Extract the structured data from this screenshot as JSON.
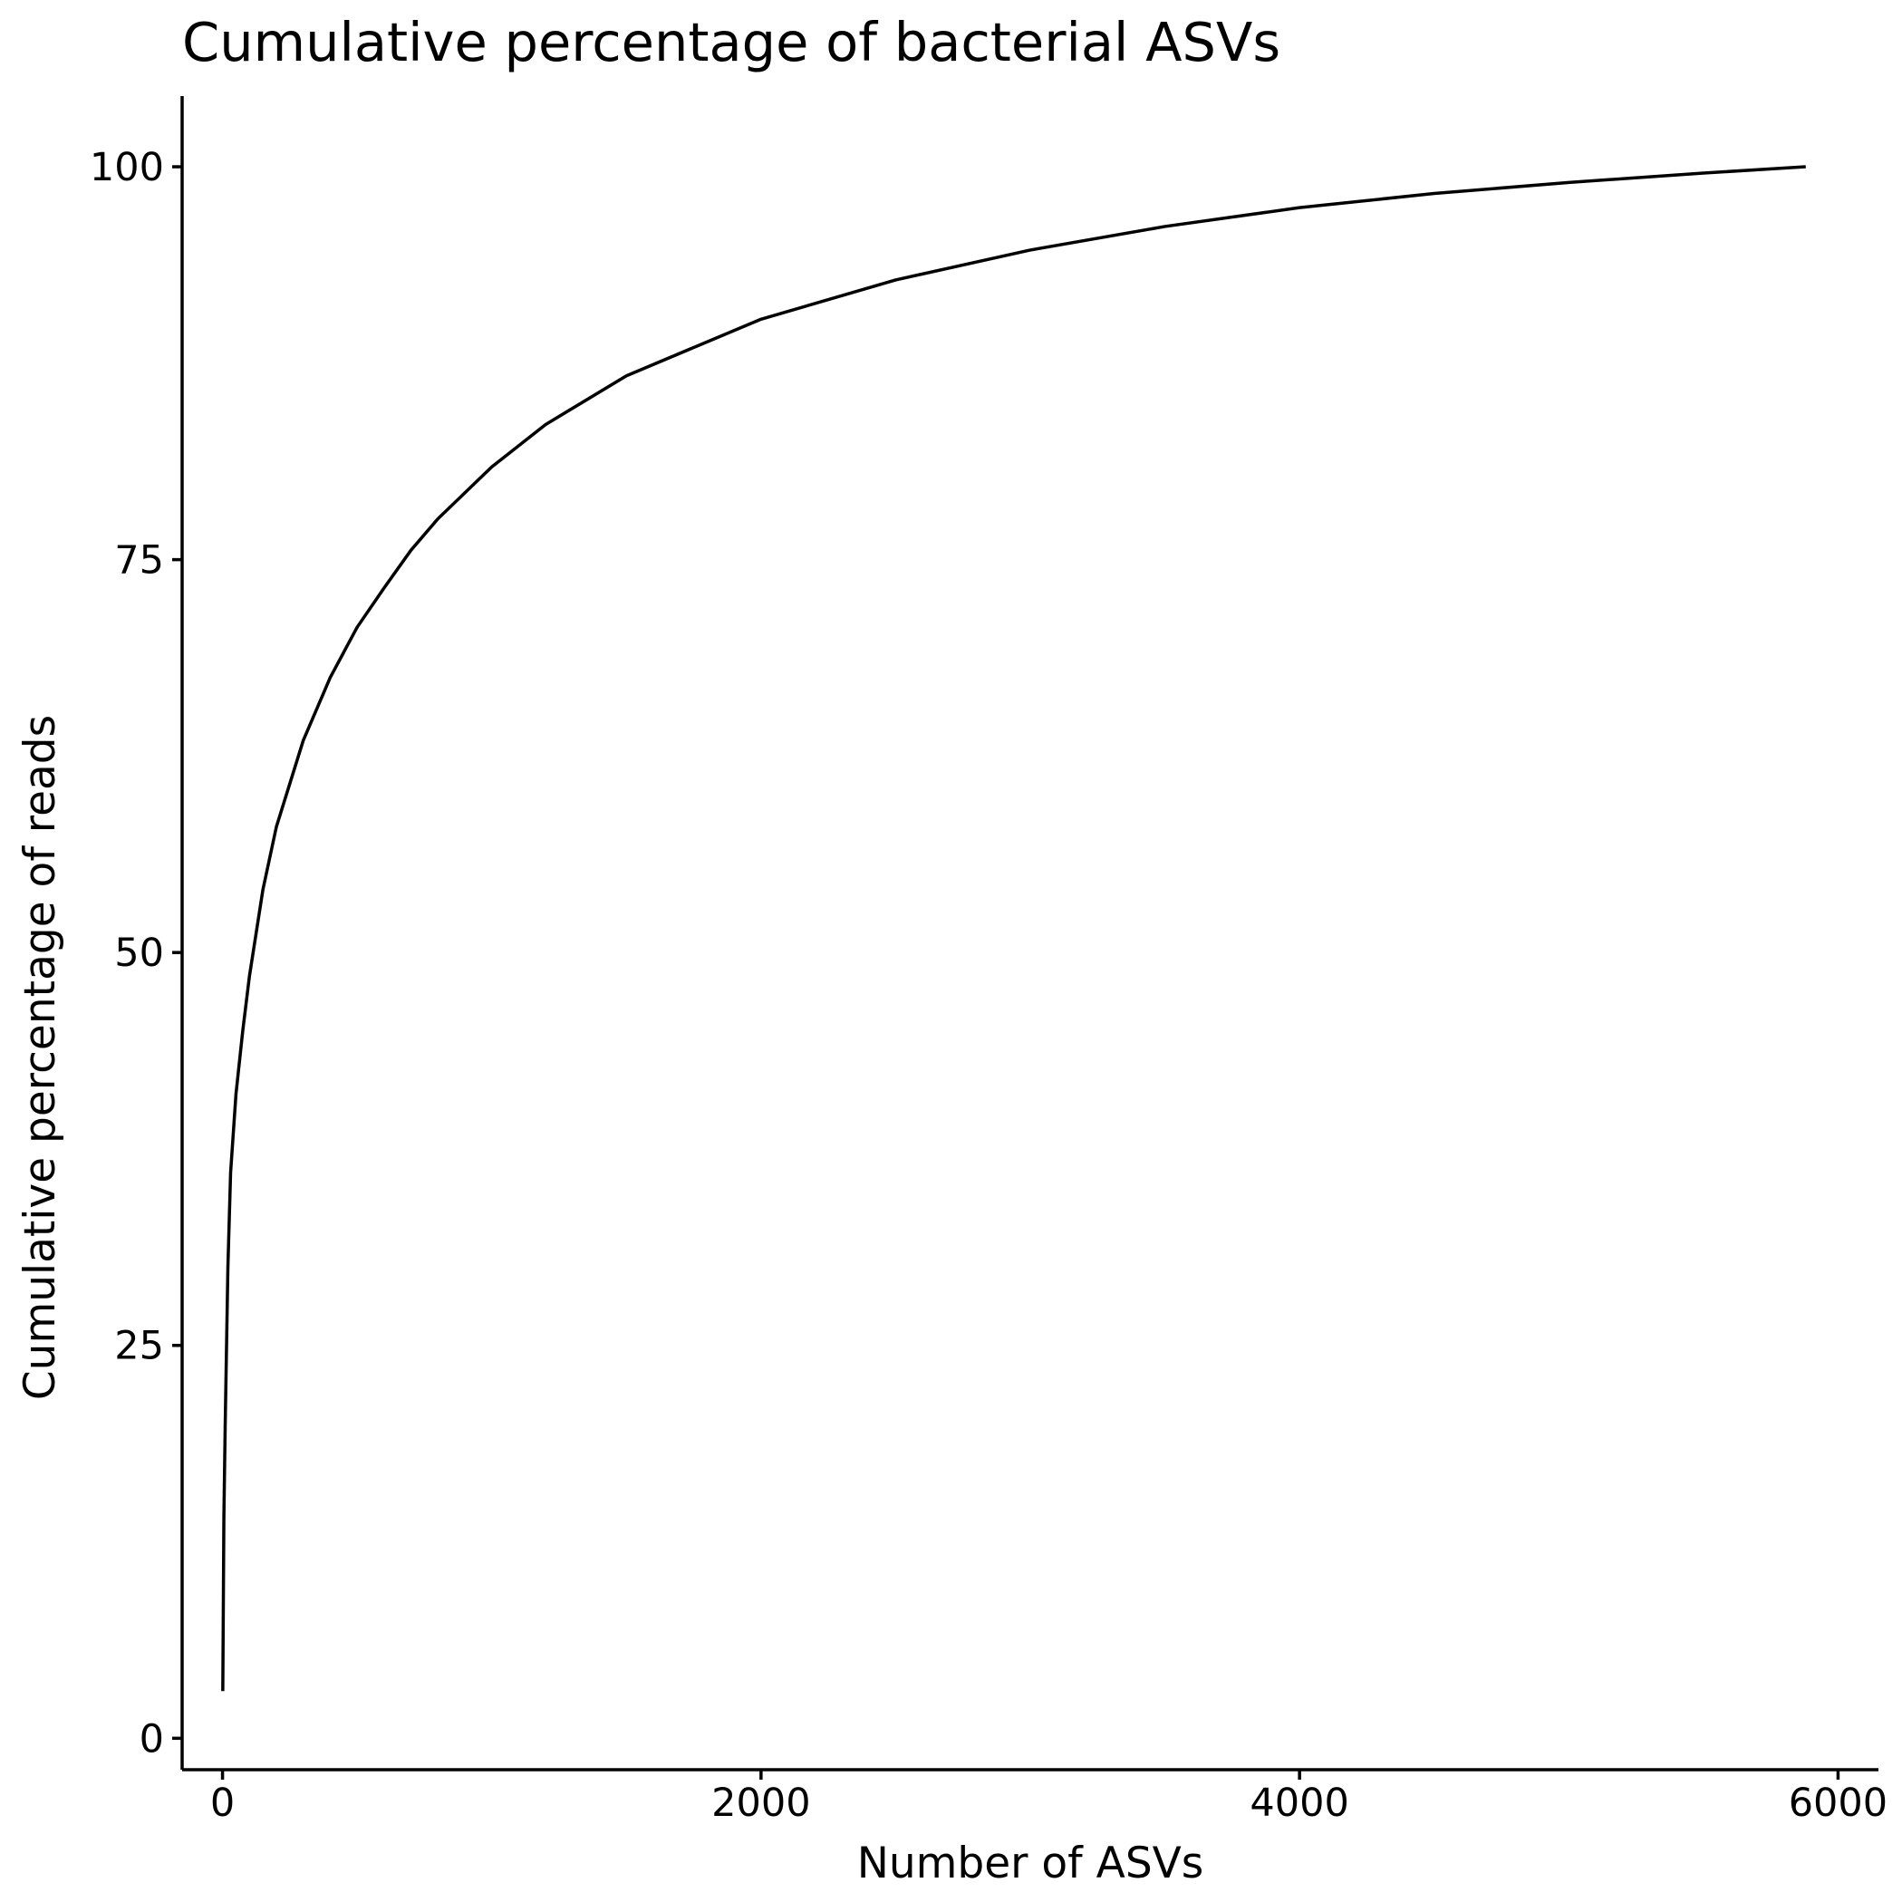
{
  "chart_data": {
    "type": "line",
    "title": "Cumulative percentage of bacterial ASVs",
    "xlabel": "Number of ASVs",
    "ylabel": "Cumulative percentage of reads",
    "xlim": [
      -150,
      6150
    ],
    "ylim": [
      -2,
      104.5
    ],
    "x_ticks": [
      0,
      2000,
      4000,
      6000
    ],
    "x_tick_labels": [
      "0",
      "2000",
      "4000",
      "6000"
    ],
    "y_ticks": [
      0,
      25,
      50,
      75,
      100
    ],
    "y_tick_labels": [
      "0",
      "25",
      "50",
      "75",
      "100"
    ],
    "grid": false,
    "legend": "none",
    "series": [
      {
        "color": "#000000",
        "x": [
          1,
          5,
          10,
          20,
          30,
          50,
          75,
          100,
          150,
          200,
          300,
          400,
          500,
          600,
          700,
          800,
          1000,
          1200,
          1500,
          2000,
          2500,
          3000,
          3500,
          4000,
          4500,
          5000,
          5500,
          5880
        ],
        "y": [
          3,
          14,
          20,
          30,
          36,
          41,
          45,
          48.5,
          54,
          58,
          63.5,
          67.5,
          70.7,
          73.2,
          75.6,
          77.6,
          80.9,
          83.6,
          86.7,
          90.3,
          92.8,
          94.7,
          96.2,
          97.4,
          98.3,
          99.0,
          99.6,
          100
        ]
      }
    ]
  }
}
